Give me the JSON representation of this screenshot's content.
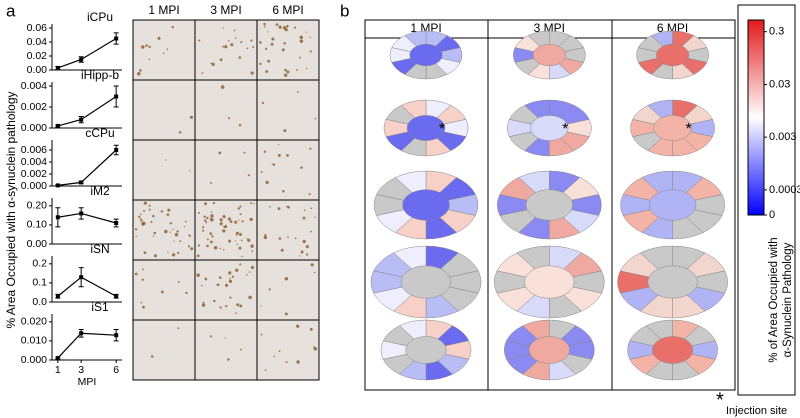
{
  "figure": {
    "panel_a": "a",
    "panel_b": "b",
    "y_label": "% Area Occupied with α-synuclein pathology",
    "micrograph_columns": [
      "1 MPI",
      "3 MPI",
      "6 MPI"
    ],
    "heatmap_columns": [
      "1 MPI",
      "3 MPI",
      "6 MPI"
    ],
    "asterisk": "*",
    "injection_site": "Injection site"
  },
  "chart_data": [
    {
      "type": "line",
      "title": "iCPu",
      "x": [
        1,
        3,
        6
      ],
      "values": [
        0.003,
        0.015,
        0.045
      ],
      "errors": [
        0.002,
        0.004,
        0.008
      ],
      "color": "#000000",
      "xlim": [
        0.5,
        6.5
      ],
      "ylim": [
        0,
        0.06
      ],
      "yticks": [
        {
          "value": 0,
          "label": "0.00"
        },
        {
          "value": 0.02,
          "label": "0.02"
        },
        {
          "value": 0.04,
          "label": "0.04"
        },
        {
          "value": 0.06,
          "label": "0.06"
        }
      ]
    },
    {
      "type": "line",
      "title": "iHipp-b",
      "x": [
        1,
        3,
        6
      ],
      "values": [
        0.0002,
        0.0008,
        0.003
      ],
      "errors": [
        0.0001,
        0.0003,
        0.001
      ],
      "color": "#000000",
      "xlim": [
        0.5,
        6.5
      ],
      "ylim": [
        0,
        0.004
      ],
      "yticks": [
        {
          "value": 0,
          "label": "0.000"
        },
        0.002,
        0.004
      ]
    },
    {
      "type": "line",
      "title": "cCPu",
      "x": [
        1,
        3,
        6
      ],
      "values": [
        0.0001,
        0.0006,
        0.006
      ],
      "errors": [
        0.0001,
        0.0002,
        0.0008
      ],
      "color": "#000000",
      "xlim": [
        0.5,
        6.5
      ],
      "ylim": [
        0,
        0.007
      ],
      "yticks": [
        {
          "value": 0,
          "label": "0.000"
        },
        0.002,
        0.004,
        0.006
      ]
    },
    {
      "type": "line",
      "title": "iM2",
      "x": [
        1,
        3,
        6
      ],
      "values": [
        0.14,
        0.16,
        0.11
      ],
      "errors": [
        0.05,
        0.03,
        0.02
      ],
      "color": "#000000",
      "xlim": [
        0.5,
        6.5
      ],
      "ylim": [
        0,
        0.22
      ],
      "yticks": [
        {
          "value": 0,
          "label": "0.00"
        },
        {
          "value": 0.1,
          "label": "0.10"
        },
        {
          "value": 0.2,
          "label": "0.20"
        }
      ]
    },
    {
      "type": "line",
      "title": "iSN",
      "x": [
        1,
        3,
        6
      ],
      "values": [
        0.03,
        0.13,
        0.03
      ],
      "errors": [
        0.01,
        0.05,
        0.01
      ],
      "color": "#000000",
      "xlim": [
        0.5,
        6.5
      ],
      "ylim": [
        0,
        0.22
      ],
      "yticks": [
        {
          "value": 0,
          "label": "0.0"
        },
        0.1,
        0.2
      ]
    },
    {
      "type": "line",
      "title": "iS1",
      "x": [
        1,
        3,
        6
      ],
      "values": [
        0.001,
        0.014,
        0.013
      ],
      "errors": [
        0.0005,
        0.002,
        0.003
      ],
      "color": "#000000",
      "xlim": [
        0.5,
        6.5
      ],
      "ylim": [
        0,
        0.022
      ],
      "yticks": [
        {
          "value": 0,
          "label": "0.000"
        },
        {
          "value": 0.01,
          "label": "0.010"
        },
        {
          "value": 0.02,
          "label": "0.020"
        }
      ],
      "xticks": [
        1,
        3,
        6
      ],
      "xlabel": "MPI"
    },
    {
      "type": "colorbar",
      "title": "% of Area Occupied with α-Synuclein Pathology",
      "log": true,
      "colors": [
        "#0000ff",
        "#ffffff",
        "#e3191c"
      ],
      "ylim": [
        0.0001,
        0.5
      ],
      "yticks": [
        {
          "value": 0,
          "label": "0"
        },
        0.0003,
        0.003,
        0.03,
        0.3
      ]
    }
  ]
}
